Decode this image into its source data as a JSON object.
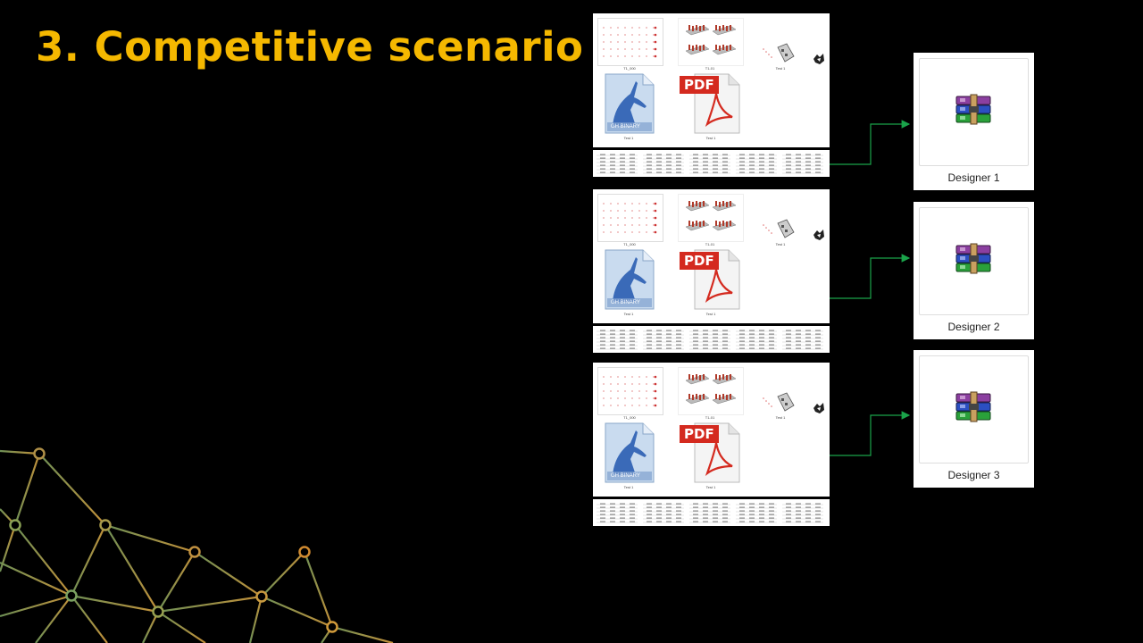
{
  "slide": {
    "title": "3. Competitive scenario",
    "accent_color": "#f5b800",
    "background_color": "#000000"
  },
  "file_groups": [
    {
      "files": [
        {
          "icon": "grid-drawing-thumbnail",
          "caption": "T1_000"
        },
        {
          "icon": "3d-model-thumbnail",
          "caption": "T1-01"
        },
        {
          "icon": "small-3d-part-icon",
          "caption": "Test 1"
        },
        {
          "icon": "rhino-icon",
          "caption": ""
        },
        {
          "icon": "grasshopper-binary-file-icon",
          "caption": "Test 1",
          "tag": "GH BINARY"
        },
        {
          "icon": "pdf-file-icon",
          "caption": "Test 1",
          "tag": "PDF"
        }
      ]
    },
    {
      "files": [
        {
          "icon": "grid-drawing-thumbnail",
          "caption": "T1_000"
        },
        {
          "icon": "3d-model-thumbnail",
          "caption": "T1-01"
        },
        {
          "icon": "small-3d-part-icon",
          "caption": "Test 1"
        },
        {
          "icon": "rhino-icon",
          "caption": ""
        },
        {
          "icon": "grasshopper-binary-file-icon",
          "caption": "Test 1",
          "tag": "GH BINARY"
        },
        {
          "icon": "pdf-file-icon",
          "caption": "Test 1",
          "tag": "PDF"
        }
      ]
    },
    {
      "files": [
        {
          "icon": "grid-drawing-thumbnail",
          "caption": "T1_000"
        },
        {
          "icon": "3d-model-thumbnail",
          "caption": "T1-01"
        },
        {
          "icon": "small-3d-part-icon",
          "caption": "Test 1"
        },
        {
          "icon": "rhino-icon",
          "caption": ""
        },
        {
          "icon": "grasshopper-binary-file-icon",
          "caption": "Test 1",
          "tag": "GH BINARY"
        },
        {
          "icon": "pdf-file-icon",
          "caption": "Test 1",
          "tag": "PDF"
        }
      ]
    }
  ],
  "designers": [
    {
      "label": "Designer 1",
      "icon": "winrar-archive-icon"
    },
    {
      "label": "Designer 2",
      "icon": "winrar-archive-icon"
    },
    {
      "label": "Designer 3",
      "icon": "winrar-archive-icon"
    }
  ],
  "connector_color": "#1aa34a",
  "network_colors": [
    "#c98a2a",
    "#7aa060",
    "#d9a040"
  ]
}
